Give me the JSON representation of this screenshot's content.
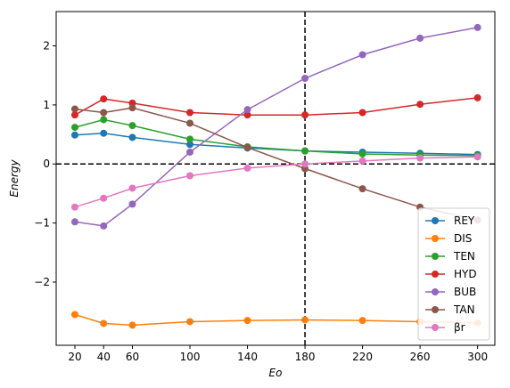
{
  "chart_data": {
    "type": "line",
    "xlabel": "Eo",
    "ylabel": "Energy",
    "x": [
      20,
      40,
      60,
      100,
      140,
      180,
      220,
      260,
      300
    ],
    "xticks": [
      "20",
      "40",
      "60",
      "100",
      "140",
      "180",
      "220",
      "260",
      "300"
    ],
    "yticks": [
      {
        "value": -2,
        "label": "−2"
      },
      {
        "value": -1,
        "label": "−1"
      },
      {
        "value": 0,
        "label": "0"
      },
      {
        "value": 1,
        "label": "1"
      },
      {
        "value": 2,
        "label": "2"
      }
    ],
    "xlim": [
      7,
      312
    ],
    "ylim": [
      -3.07,
      2.58
    ],
    "reference_lines": {
      "vertical_x": 180,
      "horizontal_y": 0,
      "style": "dashed",
      "color": "#000000"
    },
    "legend_placement": "lower-right",
    "series": [
      {
        "name": "REY",
        "color": "#1f77b4",
        "values": [
          0.49,
          0.52,
          0.45,
          0.33,
          0.27,
          0.22,
          0.2,
          0.18,
          0.16
        ]
      },
      {
        "name": "DIS",
        "color": "#ff7f0e",
        "values": [
          -2.55,
          -2.7,
          -2.73,
          -2.67,
          -2.65,
          -2.64,
          -2.65,
          -2.67,
          -2.69
        ]
      },
      {
        "name": "TEN",
        "color": "#2ca02c",
        "values": [
          0.62,
          0.75,
          0.65,
          0.42,
          0.29,
          0.22,
          0.17,
          0.15,
          0.14
        ]
      },
      {
        "name": "HYD",
        "color": "#d62728",
        "values": [
          0.83,
          1.1,
          1.03,
          0.87,
          0.83,
          0.83,
          0.87,
          1.01,
          1.12
        ]
      },
      {
        "name": "BUB",
        "color": "#9467bd",
        "values": [
          -0.98,
          -1.05,
          -0.68,
          0.2,
          0.92,
          1.45,
          1.85,
          2.13,
          2.31
        ]
      },
      {
        "name": "TAN",
        "color": "#8c564b",
        "values": [
          0.93,
          0.87,
          0.95,
          0.69,
          0.28,
          -0.08,
          -0.42,
          -0.73,
          -0.95
        ]
      },
      {
        "name": "βr",
        "color": "#e377c2",
        "values": [
          -0.73,
          -0.58,
          -0.41,
          -0.2,
          -0.07,
          0.0,
          0.05,
          0.1,
          0.12
        ]
      }
    ]
  }
}
